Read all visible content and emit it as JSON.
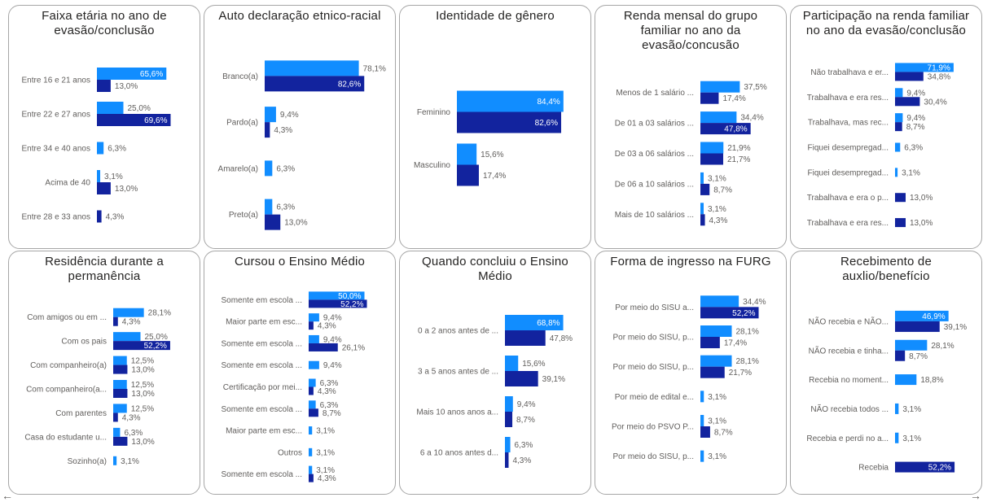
{
  "colors": {
    "series_a": "#118dff",
    "series_b": "#12239e"
  },
  "chart_data": [
    {
      "type": "bar",
      "orientation": "horizontal",
      "title": "Faixa etária no ano de evasão/conclusão",
      "categories": [
        "Entre 16 e 21 anos",
        "Entre 22 e 27 anos",
        "Entre 34 e 40 anos",
        "Acima de 40",
        "Entre 28 e 33 anos"
      ],
      "series": [
        {
          "values": [
            65.6,
            25.0,
            6.3,
            3.1,
            null
          ]
        },
        {
          "values": [
            13.0,
            69.6,
            null,
            13.0,
            4.3
          ]
        }
      ],
      "labels": [
        [
          "65,6%",
          "25,0%",
          "6,3%",
          "3,1%",
          ""
        ],
        [
          "13,0%",
          "69,6%",
          "",
          "13,0%",
          "4,3%"
        ]
      ],
      "xlim": [
        0,
        100
      ]
    },
    {
      "type": "bar",
      "orientation": "horizontal",
      "title": "Auto declaração etnico-racial",
      "categories": [
        "Branco(a)",
        "Pardo(a)",
        "Amarelo(a)",
        "Preto(a)"
      ],
      "series": [
        {
          "values": [
            78.1,
            9.4,
            6.3,
            6.3
          ]
        },
        {
          "values": [
            82.6,
            4.3,
            null,
            13.0
          ]
        }
      ],
      "labels": [
        [
          "78,1%",
          "9,4%",
          "6,3%",
          "6,3%"
        ],
        [
          "82,6%",
          "4,3%",
          "",
          "13,0%"
        ]
      ],
      "xlim": [
        0,
        100
      ]
    },
    {
      "type": "bar",
      "orientation": "horizontal",
      "title": "Identidade de gênero",
      "categories": [
        "Feminino",
        "Masculino"
      ],
      "series": [
        {
          "values": [
            84.4,
            15.6
          ]
        },
        {
          "values": [
            82.6,
            17.4
          ]
        }
      ],
      "labels": [
        [
          "84,4%",
          "15,6%"
        ],
        [
          "82,6%",
          "17,4%"
        ]
      ],
      "xlim": [
        0,
        100
      ]
    },
    {
      "type": "bar",
      "orientation": "horizontal",
      "title": "Renda mensal do grupo familiar no ano da evasão/concusão",
      "categories": [
        "Menos de 1 salário ...",
        "De 01 a 03 salários ...",
        "De 03 a 06 salários ...",
        "De 06 a 10 salários ...",
        "Mais de 10 salários ..."
      ],
      "series": [
        {
          "values": [
            37.5,
            34.4,
            21.9,
            3.1,
            3.1
          ]
        },
        {
          "values": [
            17.4,
            47.8,
            21.7,
            8.7,
            4.3
          ]
        }
      ],
      "labels": [
        [
          "37,5%",
          "34,4%",
          "21,9%",
          "3,1%",
          "3,1%"
        ],
        [
          "17,4%",
          "47,8%",
          "21,7%",
          "8,7%",
          "4,3%"
        ]
      ],
      "xlim": [
        0,
        100
      ]
    },
    {
      "type": "bar",
      "orientation": "horizontal",
      "title": "Participação na renda familiar no ano da evasão/conclusão",
      "categories": [
        "Não trabalhava e er...",
        "Trabalhava e era res...",
        "Trabalhava, mas rec...",
        "Fiquei desempregad...",
        "Fiquei desempregad...",
        "Trabalhava e era o p...",
        "Trabalhava e era res..."
      ],
      "series": [
        {
          "values": [
            71.9,
            9.4,
            9.4,
            6.3,
            3.1,
            null,
            null
          ]
        },
        {
          "values": [
            34.8,
            30.4,
            8.7,
            null,
            null,
            13.0,
            13.0
          ]
        }
      ],
      "labels": [
        [
          "71,9%",
          "9,4%",
          "9,4%",
          "6,3%",
          "3,1%",
          "",
          ""
        ],
        [
          "34,8%",
          "30,4%",
          "8,7%",
          "",
          "",
          "13,0%",
          "13,0%"
        ]
      ],
      "xlim": [
        0,
        100
      ]
    },
    {
      "type": "bar",
      "orientation": "horizontal",
      "title": "Residência durante a permanência",
      "categories": [
        "Com amigos ou em ...",
        "Com os pais",
        "Com companheiro(a)",
        "Com companheiro(a...",
        "Com parentes",
        "Casa do estudante u...",
        "Sozinho(a)"
      ],
      "series": [
        {
          "values": [
            28.1,
            25.0,
            12.5,
            12.5,
            12.5,
            6.3,
            3.1
          ]
        },
        {
          "values": [
            4.3,
            52.2,
            13.0,
            13.0,
            4.3,
            13.0,
            null
          ]
        }
      ],
      "labels": [
        [
          "28,1%",
          "25,0%",
          "12,5%",
          "12,5%",
          "12,5%",
          "6,3%",
          "3,1%"
        ],
        [
          "4,3%",
          "52,2%",
          "13,0%",
          "13,0%",
          "4,3%",
          "13,0%",
          ""
        ]
      ],
      "xlim": [
        0,
        100
      ]
    },
    {
      "type": "bar",
      "orientation": "horizontal",
      "title": "Cursou o Ensino Médio",
      "categories": [
        "Somente em escola ...",
        "Maior parte em esc...",
        "Somente em escola ...",
        "Somente em escola ...",
        "Certificação por mei...",
        "Somente em escola ...",
        "Maior parte em esc...",
        "Outros",
        "Somente em escola ..."
      ],
      "series": [
        {
          "values": [
            50.0,
            9.4,
            9.4,
            9.4,
            6.3,
            6.3,
            3.1,
            3.1,
            3.1
          ]
        },
        {
          "values": [
            52.2,
            4.3,
            26.1,
            null,
            4.3,
            8.7,
            null,
            null,
            4.3
          ]
        }
      ],
      "labels": [
        [
          "50,0%",
          "9,4%",
          "9,4%",
          "9,4%",
          "6,3%",
          "6,3%",
          "3,1%",
          "3,1%",
          "3,1%"
        ],
        [
          "52,2%",
          "4,3%",
          "26,1%",
          "",
          "4,3%",
          "8,7%",
          "",
          "",
          "4,3%"
        ]
      ],
      "xlim": [
        0,
        100
      ]
    },
    {
      "type": "bar",
      "orientation": "horizontal",
      "title": "Quando concluiu o Ensino Médio",
      "categories": [
        "0 a 2 anos antes de ...",
        "3 a 5 anos antes de ...",
        "Mais 10 anos anos a...",
        "6 a 10 anos antes d..."
      ],
      "series": [
        {
          "values": [
            68.8,
            15.6,
            9.4,
            6.3
          ]
        },
        {
          "values": [
            47.8,
            39.1,
            8.7,
            4.3
          ]
        }
      ],
      "labels": [
        [
          "68,8%",
          "15,6%",
          "9,4%",
          "6,3%"
        ],
        [
          "47,8%",
          "39,1%",
          "8,7%",
          "4,3%"
        ]
      ],
      "xlim": [
        0,
        100
      ]
    },
    {
      "type": "bar",
      "orientation": "horizontal",
      "title": "Forma de ingresso na FURG",
      "categories": [
        "Por meio do SISU a...",
        "Por meio do SISU, p...",
        "Por meio do SISU, p...",
        "Por meio de edital e...",
        "Por meio do PSVO P...",
        "Por meio do SISU, p..."
      ],
      "series": [
        {
          "values": [
            34.4,
            28.1,
            28.1,
            3.1,
            3.1,
            3.1
          ]
        },
        {
          "values": [
            52.2,
            17.4,
            21.7,
            null,
            8.7,
            null
          ]
        }
      ],
      "labels": [
        [
          "34,4%",
          "28,1%",
          "28,1%",
          "3,1%",
          "3,1%",
          "3,1%"
        ],
        [
          "52,2%",
          "17,4%",
          "21,7%",
          "",
          "8,7%",
          ""
        ]
      ],
      "xlim": [
        0,
        100
      ]
    },
    {
      "type": "bar",
      "orientation": "horizontal",
      "title": "Recebimento de auxlio/benefício",
      "categories": [
        "NÃO recebia e NÃO...",
        "NÃO recebia e tinha...",
        "Recebia no moment...",
        "NÃO recebia todos ...",
        "Recebia e perdi no a...",
        "Recebia"
      ],
      "series": [
        {
          "values": [
            46.9,
            28.1,
            18.8,
            3.1,
            3.1,
            null
          ]
        },
        {
          "values": [
            39.1,
            8.7,
            null,
            null,
            null,
            52.2
          ]
        }
      ],
      "labels": [
        [
          "46,9%",
          "28,1%",
          "18,8%",
          "3,1%",
          "3,1%",
          ""
        ],
        [
          "39,1%",
          "8,7%",
          "",
          "",
          "",
          "52,2%"
        ]
      ],
      "xlim": [
        0,
        100
      ]
    }
  ]
}
